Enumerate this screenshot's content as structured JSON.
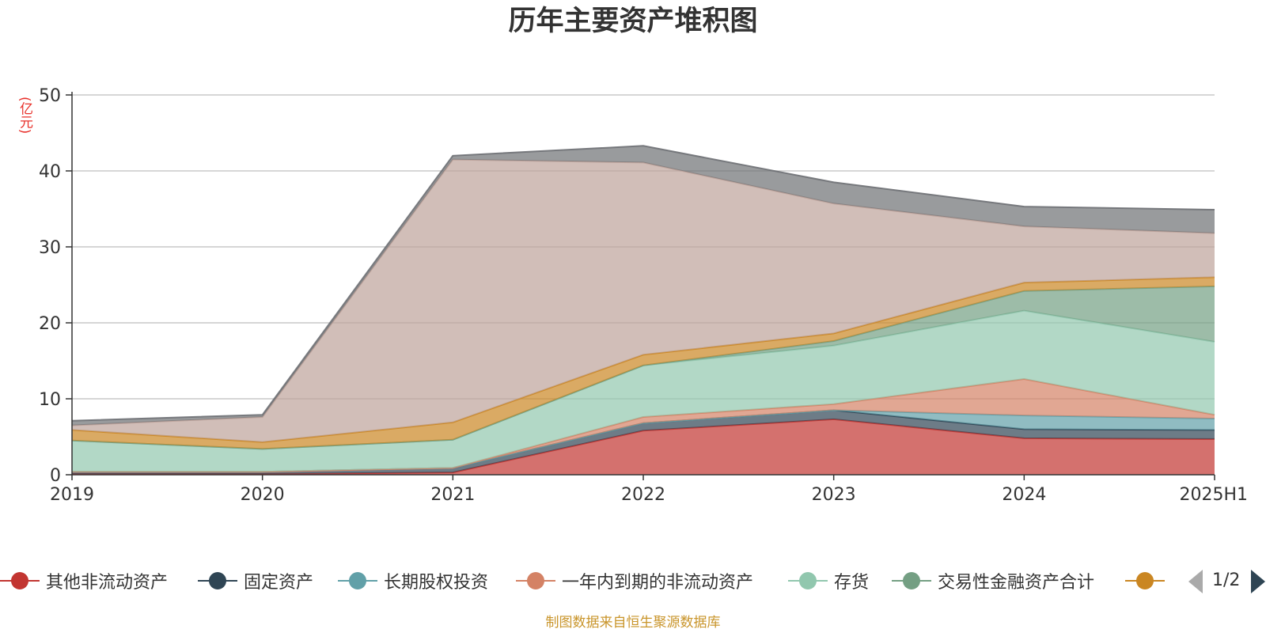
{
  "chart_data": {
    "type": "area",
    "stacked": true,
    "title": "历年主要资产堆积图",
    "y_unit": "(亿元)",
    "ylim": [
      0,
      50
    ],
    "y_ticks": [
      0,
      10,
      20,
      30,
      40,
      50
    ],
    "categories": [
      "2019",
      "2020",
      "2021",
      "2022",
      "2023",
      "2024",
      "2025H1"
    ],
    "grid": true,
    "legend_position": "bottom",
    "series": [
      {
        "name": "其他非流动资产",
        "color": "#c23531",
        "values": [
          0.1,
          0.1,
          0.3,
          5.8,
          7.3,
          4.8,
          4.7
        ]
      },
      {
        "name": "固定资产",
        "color": "#2f4554",
        "values": [
          0.3,
          0.3,
          0.6,
          1.0,
          1.2,
          1.2,
          1.2
        ]
      },
      {
        "name": "长期股权投资",
        "color": "#61a0a8",
        "values": [
          0.0,
          0.0,
          0.0,
          0.0,
          0.0,
          1.8,
          1.5
        ]
      },
      {
        "name": "一年内到期的非流动资产",
        "color": "#d48265",
        "values": [
          0.0,
          0.0,
          0.0,
          0.8,
          0.8,
          4.8,
          0.5
        ]
      },
      {
        "name": "存货",
        "color": "#91c7ae",
        "values": [
          4.1,
          3.0,
          3.7,
          6.8,
          7.7,
          9.0,
          9.6
        ]
      },
      {
        "name": "交易性金融资产合计",
        "color": "#749f83",
        "values": [
          0.0,
          0.0,
          0.0,
          0.0,
          0.6,
          2.6,
          7.3
        ]
      },
      {
        "name": "",
        "color": "#ca8622",
        "values": [
          1.4,
          0.9,
          2.3,
          1.4,
          1.0,
          1.1,
          1.2
        ]
      },
      {
        "name": "",
        "color": "#bda29a",
        "values": [
          0.6,
          3.3,
          34.6,
          25.3,
          17.1,
          7.4,
          5.8
        ]
      },
      {
        "name": "",
        "color": "#6e7074",
        "values": [
          0.6,
          0.3,
          0.5,
          2.2,
          2.8,
          2.6,
          3.1
        ]
      }
    ],
    "legend_page": "1/2",
    "source_note": "制图数据来自恒生聚源数据库"
  }
}
